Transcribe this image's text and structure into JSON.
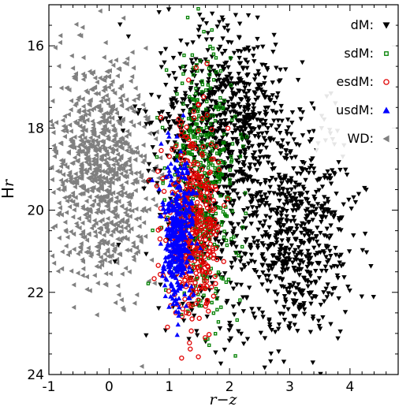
{
  "chart_data": {
    "type": "scatter",
    "title": "",
    "xlabel": "r−z",
    "ylabel_main": "H",
    "ylabel_sub": "r",
    "xlim": [
      -1,
      4.8
    ],
    "ylim": [
      24,
      15
    ],
    "y_inverted": true,
    "grid": false,
    "legend_placement": "top-right",
    "x_ticks": [
      -1,
      0,
      1,
      2,
      3,
      4
    ],
    "x_tick_labels": [
      "-1",
      "0",
      "1",
      "2",
      "3",
      "4"
    ],
    "y_ticks": [
      16,
      18,
      20,
      22,
      24
    ],
    "y_tick_labels": [
      "16",
      "18",
      "20",
      "22",
      "24"
    ],
    "series": [
      {
        "name": "WD:",
        "color": "#808080",
        "marker": "triangle-left",
        "filled": true,
        "clusters": [
          {
            "cx": -0.15,
            "cy": 19.0,
            "sx": 0.42,
            "sy": 1.4,
            "n": 900
          }
        ]
      },
      {
        "name": "dM:",
        "color": "#000000",
        "marker": "triangle-down",
        "filled": true,
        "clusters": [
          {
            "cx": 1.95,
            "cy": 17.8,
            "sx": 0.55,
            "sy": 1.1,
            "n": 700
          },
          {
            "cx": 3.1,
            "cy": 20.6,
            "sx": 0.45,
            "sy": 1.3,
            "n": 650
          },
          {
            "cx": 1.7,
            "cy": 20.5,
            "sx": 0.5,
            "sy": 1.6,
            "n": 250
          }
        ]
      },
      {
        "name": "sdM:",
        "color": "#008000",
        "marker": "square",
        "filled": false,
        "clusters": [
          {
            "cx": 1.55,
            "cy": 19.3,
            "sx": 0.3,
            "sy": 1.5,
            "n": 450
          }
        ]
      },
      {
        "name": "esdM:",
        "color": "#e00000",
        "marker": "circle",
        "filled": false,
        "clusters": [
          {
            "cx": 1.4,
            "cy": 20.3,
            "sx": 0.22,
            "sy": 1.1,
            "n": 450
          }
        ]
      },
      {
        "name": "usdM:",
        "color": "#0000ff",
        "marker": "triangle-up",
        "filled": true,
        "clusters": [
          {
            "cx": 1.15,
            "cy": 20.6,
            "sx": 0.12,
            "sy": 0.9,
            "n": 400
          }
        ]
      }
    ],
    "legend_order": [
      "dM:",
      "sdM:",
      "esdM:",
      "usdM:",
      "WD:"
    ]
  }
}
